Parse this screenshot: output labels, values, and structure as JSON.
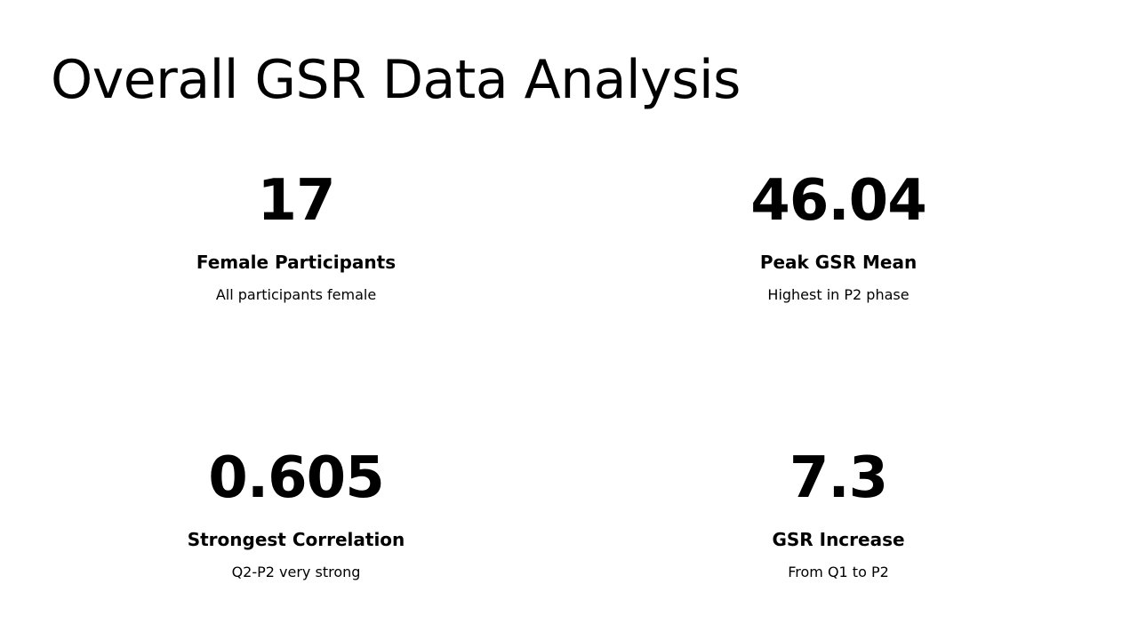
{
  "title": "Overall GSR Data Analysis",
  "stats": [
    {
      "value": "17",
      "label": "Female Participants",
      "description": "All participants female"
    },
    {
      "value": "46.04",
      "label": "Peak GSR Mean",
      "description": "Highest in P2 phase"
    },
    {
      "value": "0.605",
      "label": "Strongest Correlation",
      "description": "Q2-P2 very strong"
    },
    {
      "value": "7.3",
      "label": "GSR Increase",
      "description": "From Q1 to P2"
    }
  ]
}
